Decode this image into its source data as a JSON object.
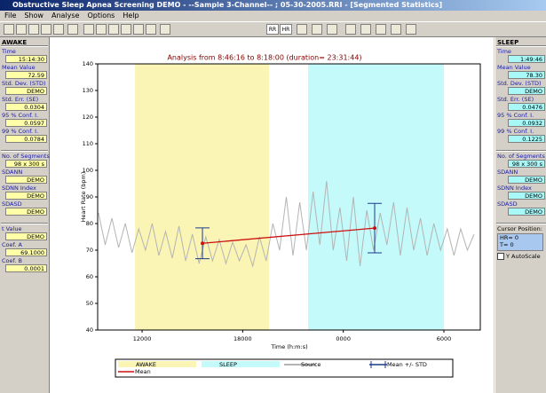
{
  "window": {
    "title": "Obstructive Sleep Apnea Screening DEMO - --Sample 3-Channel-- ; 05-30-2005.RRI - [Segmented Statistics]",
    "menu": [
      "File",
      "Show",
      "Analyse",
      "Options",
      "Help"
    ],
    "toolbar": {
      "buttons": [
        "RR",
        "HR"
      ]
    }
  },
  "left_panel": {
    "heading": "AWAKE",
    "groups": [
      [
        {
          "label": "Time",
          "value": "15:14:30"
        },
        {
          "label": "Mean Value",
          "value": "72.59"
        },
        {
          "label": "Std. Dev. (STD)",
          "value": "DEMO"
        },
        {
          "label": "Std. Err. (SE)",
          "value": "0.0304"
        },
        {
          "label": "95 % Conf. I.",
          "value": "0.0597"
        },
        {
          "label": "99 % Conf. I.",
          "value": "0.0784"
        }
      ],
      [
        {
          "label": "No. of Segments",
          "value": "98 x 300 s"
        },
        {
          "label": "SDANN",
          "value": "DEMO"
        },
        {
          "label": "SDNN Index",
          "value": "DEMO"
        },
        {
          "label": "SDASD",
          "value": "DEMO"
        }
      ],
      [
        {
          "label": "t Value",
          "value": "DEMO"
        },
        {
          "label": "Coef. A",
          "value": "69.1000"
        },
        {
          "label": "Coef. B",
          "value": "0.0001"
        }
      ]
    ]
  },
  "right_panel": {
    "heading": "SLEEP",
    "groups": [
      [
        {
          "label": "Time",
          "value": "1:49:46"
        },
        {
          "label": "Mean Value",
          "value": "78.30"
        },
        {
          "label": "Std. Dev. (STD)",
          "value": "DEMO"
        },
        {
          "label": "Std. Err. (SE)",
          "value": "0.0476"
        },
        {
          "label": "95 % Conf. I.",
          "value": "0.0932"
        },
        {
          "label": "99 % Conf. I.",
          "value": "0.1225"
        }
      ],
      [
        {
          "label": "No. of Segments",
          "value": "98 x 300 s"
        },
        {
          "label": "SDANN",
          "value": "DEMO"
        },
        {
          "label": "SDNN Index",
          "value": "DEMO"
        },
        {
          "label": "SDASD",
          "value": "DEMO"
        }
      ]
    ],
    "cursor": {
      "label": "Cursor Position:",
      "lines": [
        "HR= 0",
        "T=  0"
      ]
    },
    "checkbox": "Y AutoScale"
  },
  "chart_data": {
    "type": "line",
    "title": "Analysis from 8:46:16 to 8:18:00 (duration= 23:31:44)",
    "x_label": "Time (h:m:s)",
    "y_label": "Heart Rate (bpm)",
    "xlim": [
      9.35,
      32.17
    ],
    "ylim": [
      40,
      140
    ],
    "xticks": [
      {
        "value": 12,
        "label": "12000"
      },
      {
        "value": 18,
        "label": "18000"
      },
      {
        "value": 24,
        "label": "0000"
      },
      {
        "value": 30,
        "label": "6000"
      }
    ],
    "yticks": [
      40,
      50,
      60,
      70,
      80,
      90,
      100,
      110,
      120,
      130,
      140
    ],
    "regions": [
      {
        "name": "AWAKE",
        "color": "#faf5b4",
        "start": 11.58,
        "end": 19.57
      },
      {
        "name": "SLEEP",
        "color": "#c4fafa",
        "start": 21.9,
        "end": 30.0
      }
    ],
    "series": [
      {
        "name": "Source",
        "color": "#b4b4b4",
        "x": [
          9.4,
          9.8,
          10.2,
          10.6,
          11.0,
          11.4,
          11.8,
          12.2,
          12.6,
          13.0,
          13.4,
          13.8,
          14.2,
          14.6,
          15.0,
          15.4,
          15.8,
          16.2,
          16.6,
          17.0,
          17.4,
          17.8,
          18.2,
          18.6,
          19.0,
          19.4,
          19.8,
          20.2,
          20.6,
          21.0,
          21.4,
          21.8,
          22.2,
          22.6,
          23.0,
          23.4,
          23.8,
          24.2,
          24.6,
          25.0,
          25.4,
          25.8,
          26.2,
          26.6,
          27.0,
          27.4,
          27.8,
          28.2,
          28.6,
          29.0,
          29.4,
          29.8,
          30.2,
          30.6,
          31.0,
          31.4,
          31.8
        ],
        "values": [
          84,
          72,
          82,
          71,
          80,
          69,
          78,
          70,
          80,
          68,
          77,
          67,
          79,
          66,
          76,
          65,
          75,
          66,
          74,
          65,
          73,
          66,
          72,
          64,
          75,
          66,
          80,
          70,
          90,
          68,
          88,
          70,
          92,
          72,
          96,
          70,
          86,
          66,
          90,
          64,
          85,
          70,
          84,
          72,
          88,
          68,
          86,
          70,
          82,
          68,
          80,
          70,
          78,
          68,
          78,
          70,
          76
        ]
      },
      {
        "name": "Mean",
        "color": "#cc1010",
        "x": [
          15.6,
          25.87
        ],
        "values": [
          72.59,
          78.3
        ],
        "error_name": "Mean +/- STD",
        "error_color": "#1a3a8a",
        "errors": [
          5.8,
          9.3
        ]
      }
    ]
  }
}
